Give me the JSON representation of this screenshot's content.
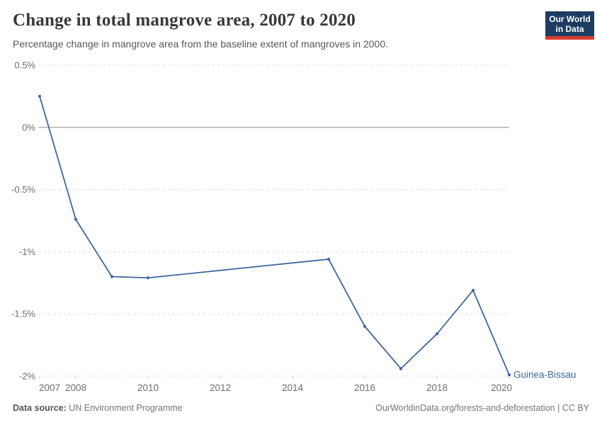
{
  "header": {
    "title": "Change in total mangrove area, 2007 to 2020",
    "subtitle": "Percentage change in mangrove area from the baseline extent of mangroves in 2000."
  },
  "logo": {
    "line1": "Our World",
    "line2": "in Data",
    "bg_color": "#1d3d63",
    "accent_color": "#d93b31"
  },
  "footer": {
    "source_label": "Data source:",
    "source_value": "UN Environment Programme",
    "credit": "OurWorldinData.org/forests-and-deforestation | CC BY"
  },
  "colors": {
    "line": "#3f669e",
    "grid": "#dcdcdc",
    "zero_line": "#b3b3b3",
    "tick_text": "#6e6e6e",
    "tick_mark": "#cccccc"
  },
  "chart_data": {
    "type": "line",
    "title": "Change in total mangrove area, 2007 to 2020",
    "subtitle": "Percentage change in mangrove area from the baseline extent of mangroves in 2000.",
    "xlabel": "",
    "ylabel": "",
    "x_range": [
      2007,
      2020
    ],
    "y_range": [
      -2,
      0.5
    ],
    "grid": true,
    "legend_position": "end-of-line",
    "y_ticks": [
      {
        "v": 0.5,
        "label": "0.5%"
      },
      {
        "v": 0,
        "label": "0%"
      },
      {
        "v": -0.5,
        "label": "-0.5%"
      },
      {
        "v": -1,
        "label": "-1%"
      },
      {
        "v": -1.5,
        "label": "-1.5%"
      },
      {
        "v": -2,
        "label": "-2%"
      }
    ],
    "x_ticks": [
      {
        "v": 2007,
        "label": "2007"
      },
      {
        "v": 2008,
        "label": "2008"
      },
      {
        "v": 2010,
        "label": "2010"
      },
      {
        "v": 2012,
        "label": "2012"
      },
      {
        "v": 2014,
        "label": "2014"
      },
      {
        "v": 2016,
        "label": "2016"
      },
      {
        "v": 2018,
        "label": "2018"
      },
      {
        "v": 2020,
        "label": "2020"
      }
    ],
    "series": [
      {
        "name": "Guinea-Bissau",
        "color": "#3f669e",
        "points": [
          {
            "x": 2007,
            "y": 0.25
          },
          {
            "x": 2008,
            "y": -0.74
          },
          {
            "x": 2009,
            "y": -1.2
          },
          {
            "x": 2010,
            "y": -1.21
          },
          {
            "x": 2015,
            "y": -1.06
          },
          {
            "x": 2016,
            "y": -1.6
          },
          {
            "x": 2017,
            "y": -1.94
          },
          {
            "x": 2018,
            "y": -1.66
          },
          {
            "x": 2019,
            "y": -1.31
          },
          {
            "x": 2020,
            "y": -1.99
          }
        ]
      }
    ]
  }
}
